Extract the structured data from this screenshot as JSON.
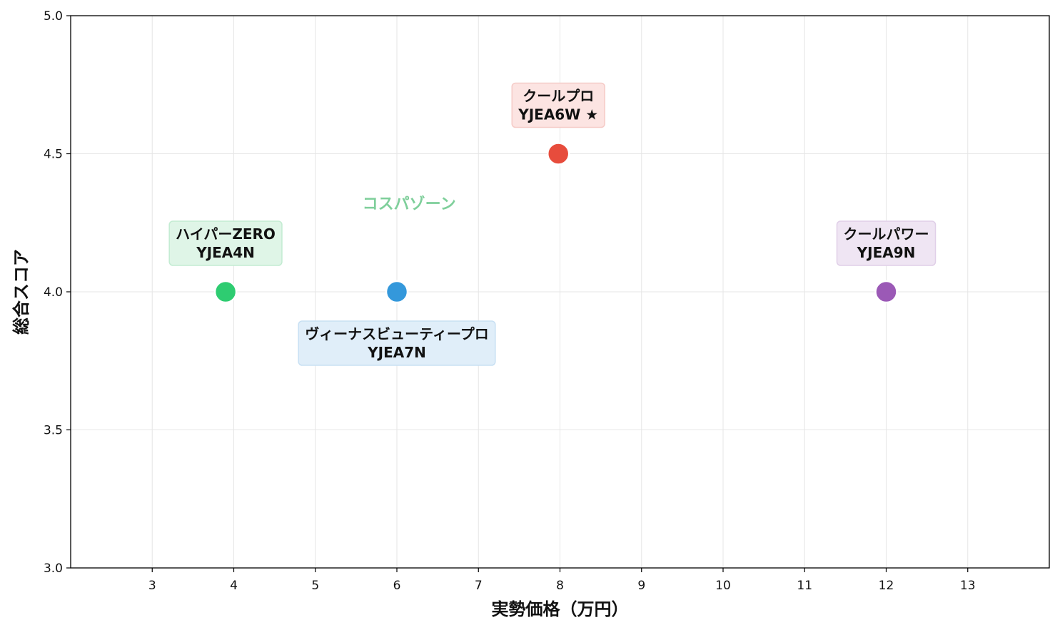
{
  "chart_data": {
    "type": "scatter",
    "xlabel": "実勢価格（万円）",
    "ylabel": "総合スコア",
    "xlim": [
      2,
      14
    ],
    "ylim": [
      3.0,
      5.0
    ],
    "x_ticks": [
      3,
      4,
      5,
      6,
      7,
      8,
      9,
      10,
      11,
      12,
      13
    ],
    "y_ticks": [
      "3.0",
      "3.5",
      "4.0",
      "4.5",
      "5.0"
    ],
    "grid": true,
    "annotations": [
      {
        "text": "コスパゾーン",
        "x": 6.15,
        "y": 4.32,
        "color": "#7fcf9b"
      }
    ],
    "points": [
      {
        "name": "ハイパーZERO",
        "model": "YJEA4N",
        "x": 3.9,
        "y": 4.0,
        "color": "#2ecc71",
        "box_fill": "#dff5e7",
        "box_stroke": "#c3ecd2",
        "label_pos": "above"
      },
      {
        "name": "ヴィーナスビューティープロ",
        "model": "YJEA7N",
        "x": 6.0,
        "y": 4.0,
        "color": "#3498db",
        "box_fill": "#e0eef9",
        "box_stroke": "#c8e0f3",
        "label_pos": "below"
      },
      {
        "name": "クールプロ",
        "model": "YJEA6W ★",
        "x": 7.98,
        "y": 4.5,
        "color": "#e74c3c",
        "box_fill": "#fce4e2",
        "box_stroke": "#f5cbc7",
        "label_pos": "above"
      },
      {
        "name": "クールパワー",
        "model": "YJEA9N",
        "x": 12.0,
        "y": 4.0,
        "color": "#9b59b6",
        "box_fill": "#efe5f3",
        "box_stroke": "#e0cfe8",
        "label_pos": "above"
      }
    ]
  }
}
